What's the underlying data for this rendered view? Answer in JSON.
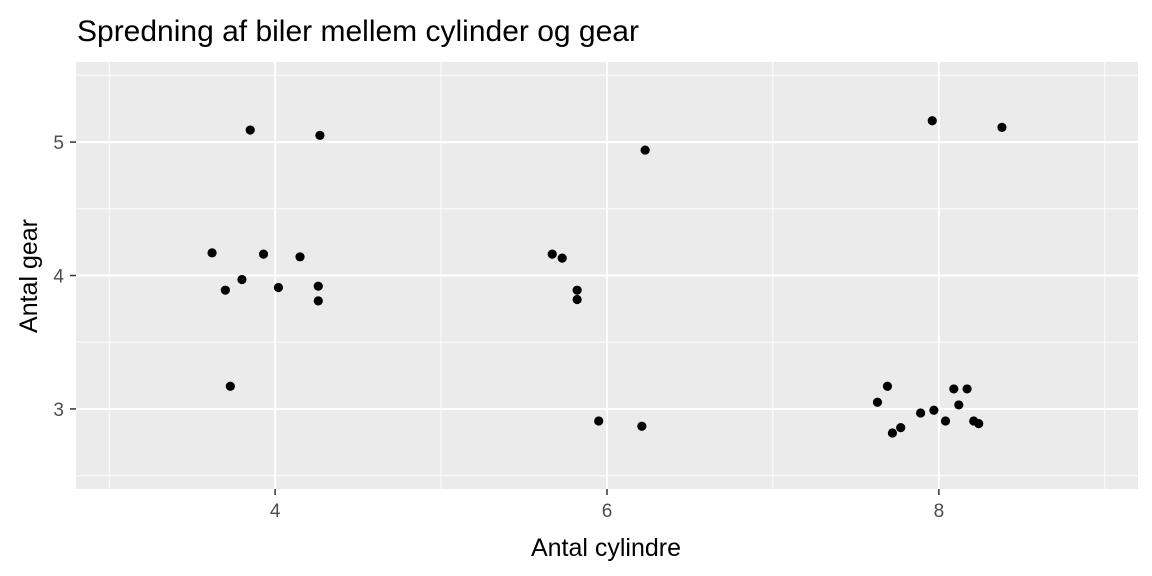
{
  "chart_data": {
    "type": "scatter",
    "title": "Spredning af biler mellem cylinder og gear",
    "xlabel": "Antal cylindre",
    "ylabel": "Antal gear",
    "xlim": [
      2.8,
      9.2
    ],
    "ylim": [
      2.4,
      5.6
    ],
    "x_ticks": [
      4,
      6,
      8
    ],
    "x_tick_labels": [
      "4",
      "6",
      "8"
    ],
    "y_ticks": [
      3,
      4,
      5
    ],
    "y_tick_labels": [
      "3",
      "4",
      "5"
    ],
    "x_minor_grid": [
      3,
      5,
      7,
      9
    ],
    "y_minor_grid": [
      2.5,
      3.5,
      4.5,
      5.5
    ],
    "grid": true,
    "legend": "none",
    "colors": {
      "panel": "#ebebeb",
      "grid": "#ffffff",
      "point": "#000000"
    },
    "points": [
      {
        "x": 3.85,
        "y": 5.09
      },
      {
        "x": 4.27,
        "y": 5.05
      },
      {
        "x": 3.62,
        "y": 4.17
      },
      {
        "x": 3.93,
        "y": 4.16
      },
      {
        "x": 4.15,
        "y": 4.14
      },
      {
        "x": 3.8,
        "y": 3.97
      },
      {
        "x": 3.7,
        "y": 3.89
      },
      {
        "x": 4.02,
        "y": 3.91
      },
      {
        "x": 4.26,
        "y": 3.92
      },
      {
        "x": 4.26,
        "y": 3.81
      },
      {
        "x": 3.73,
        "y": 3.17
      },
      {
        "x": 6.23,
        "y": 4.94
      },
      {
        "x": 5.67,
        "y": 4.16
      },
      {
        "x": 5.73,
        "y": 4.13
      },
      {
        "x": 5.82,
        "y": 3.89
      },
      {
        "x": 5.82,
        "y": 3.82
      },
      {
        "x": 5.95,
        "y": 2.91
      },
      {
        "x": 6.21,
        "y": 2.87
      },
      {
        "x": 7.96,
        "y": 5.16
      },
      {
        "x": 8.38,
        "y": 5.11
      },
      {
        "x": 7.69,
        "y": 3.17
      },
      {
        "x": 7.63,
        "y": 3.05
      },
      {
        "x": 8.09,
        "y": 3.15
      },
      {
        "x": 8.17,
        "y": 3.15
      },
      {
        "x": 8.12,
        "y": 3.03
      },
      {
        "x": 7.97,
        "y": 2.99
      },
      {
        "x": 7.89,
        "y": 2.97
      },
      {
        "x": 8.04,
        "y": 2.91
      },
      {
        "x": 8.21,
        "y": 2.91
      },
      {
        "x": 8.24,
        "y": 2.89
      },
      {
        "x": 7.77,
        "y": 2.86
      },
      {
        "x": 7.72,
        "y": 2.82
      }
    ]
  }
}
